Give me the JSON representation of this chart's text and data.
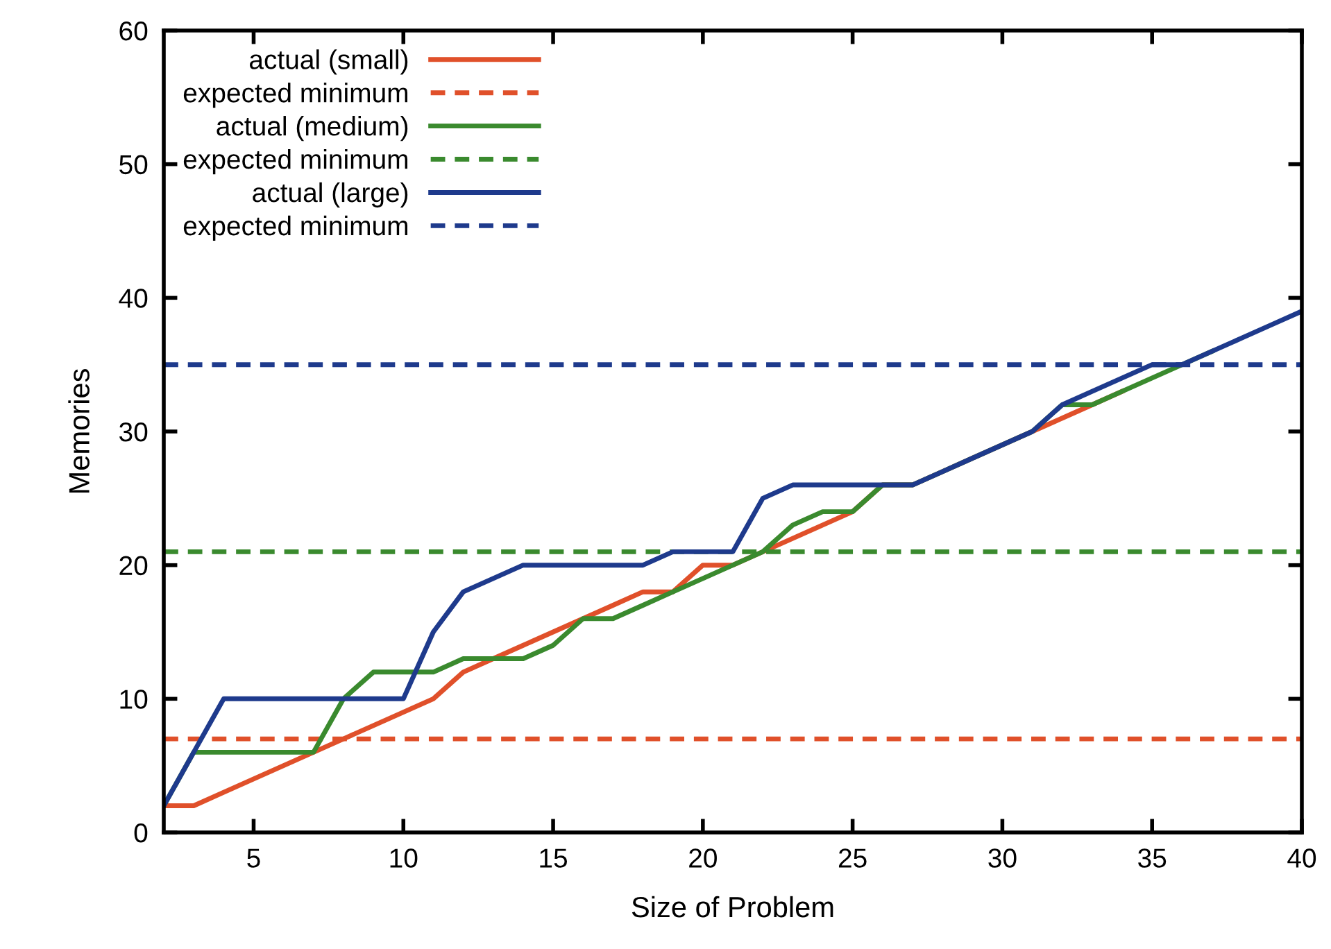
{
  "chart_data": {
    "type": "line",
    "xlabel": "Size of Problem",
    "ylabel": "Memories",
    "x": [
      2,
      3,
      4,
      5,
      6,
      7,
      8,
      9,
      10,
      11,
      12,
      13,
      14,
      15,
      16,
      17,
      18,
      19,
      20,
      21,
      22,
      23,
      24,
      25,
      26,
      27,
      28,
      29,
      30,
      31,
      32,
      33,
      34,
      35,
      36,
      37,
      38,
      39,
      40
    ],
    "series": [
      {
        "name": "actual (small)",
        "color": "#e0502a",
        "line_style": "solid",
        "values": [
          2,
          2,
          3,
          4,
          5,
          6,
          7,
          8,
          9,
          10,
          12,
          13,
          14,
          15,
          16,
          17,
          18,
          18,
          20,
          20,
          21,
          22,
          23,
          24,
          26,
          26,
          27,
          28,
          29,
          30,
          31,
          32,
          33,
          null,
          null,
          null,
          null,
          null,
          null
        ]
      },
      {
        "name": "expected minimum",
        "color": "#e0502a",
        "line_style": "dashed",
        "values": [
          7,
          7,
          7,
          7,
          7,
          7,
          7,
          7,
          7,
          7,
          7,
          7,
          7,
          7,
          7,
          7,
          7,
          7,
          7,
          7,
          7,
          7,
          7,
          7,
          7,
          7,
          7,
          7,
          7,
          7,
          7,
          7,
          7,
          7,
          7,
          7,
          7,
          7,
          7
        ]
      },
      {
        "name": "actual (medium)",
        "color": "#3a8a2e",
        "line_style": "solid",
        "values": [
          2,
          6,
          6,
          6,
          6,
          6,
          10,
          12,
          12,
          12,
          13,
          13,
          13,
          14,
          16,
          16,
          17,
          18,
          19,
          20,
          21,
          23,
          24,
          24,
          26,
          26,
          27,
          28,
          29,
          30,
          32,
          32,
          33,
          34,
          35,
          36,
          null,
          null,
          null
        ]
      },
      {
        "name": "expected minimum",
        "color": "#3a8a2e",
        "line_style": "dashed",
        "values": [
          21,
          21,
          21,
          21,
          21,
          21,
          21,
          21,
          21,
          21,
          21,
          21,
          21,
          21,
          21,
          21,
          21,
          21,
          21,
          21,
          21,
          21,
          21,
          21,
          21,
          21,
          21,
          21,
          21,
          21,
          21,
          21,
          21,
          21,
          21,
          21,
          21,
          21,
          21
        ]
      },
      {
        "name": "actual (large)",
        "color": "#1e3a8c",
        "line_style": "solid",
        "values": [
          2,
          6,
          10,
          10,
          10,
          10,
          10,
          10,
          10,
          15,
          18,
          19,
          20,
          20,
          20,
          20,
          20,
          21,
          21,
          21,
          25,
          26,
          26,
          26,
          26,
          26,
          27,
          28,
          29,
          30,
          32,
          33,
          34,
          35,
          35,
          36,
          37,
          38,
          39
        ]
      },
      {
        "name": "expected minimum",
        "color": "#1e3a8c",
        "line_style": "dashed",
        "values": [
          35,
          35,
          35,
          35,
          35,
          35,
          35,
          35,
          35,
          35,
          35,
          35,
          35,
          35,
          35,
          35,
          35,
          35,
          35,
          35,
          35,
          35,
          35,
          35,
          35,
          35,
          35,
          35,
          35,
          35,
          35,
          35,
          35,
          35,
          35,
          35,
          35,
          35,
          35
        ]
      }
    ],
    "xlim": [
      2,
      40
    ],
    "xticks": [
      5,
      10,
      15,
      20,
      25,
      30,
      35,
      40
    ],
    "ylim": [
      0,
      60
    ],
    "yticks": [
      0,
      10,
      20,
      30,
      40,
      50,
      60
    ],
    "grid": false,
    "legend": "top left",
    "marker": "none"
  }
}
